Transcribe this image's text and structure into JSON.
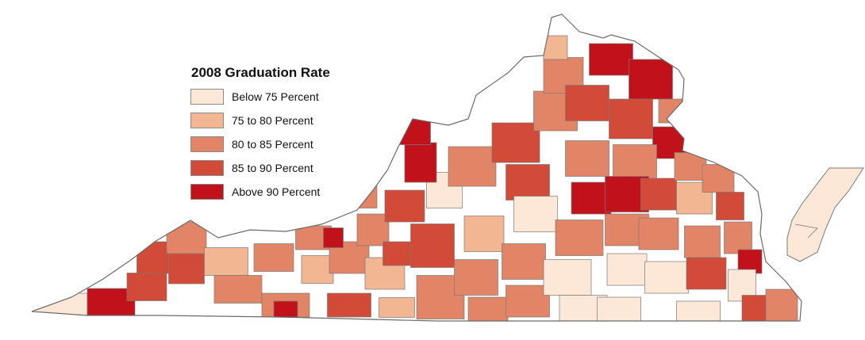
{
  "legend": {
    "title": "2008 Graduation Rate",
    "items": [
      {
        "label": "Below 75 Percent",
        "color": "#fde7d7"
      },
      {
        "label": "75 to 80 Percent",
        "color": "#f2b692"
      },
      {
        "label": "80 to 85 Percent",
        "color": "#e28466"
      },
      {
        "label": "85 to 90 Percent",
        "color": "#d24a38"
      },
      {
        "label": "Above 90 Percent",
        "color": "#c1111a"
      }
    ]
  },
  "map": {
    "region": "Virginia",
    "border_color": "#7a7a7a"
  }
}
